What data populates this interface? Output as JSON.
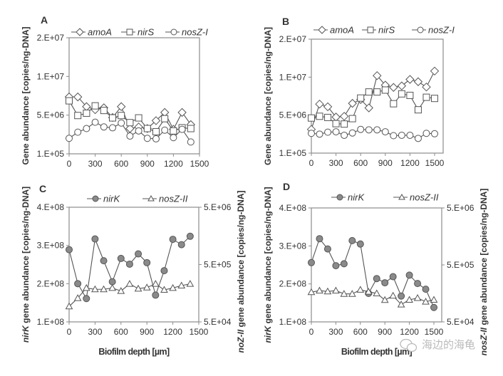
{
  "chart_data": [
    {
      "panel": "A",
      "type": "line",
      "x": [
        0,
        100,
        200,
        300,
        400,
        500,
        600,
        700,
        800,
        900,
        1000,
        1100,
        1200,
        1300,
        1400
      ],
      "x_ticks": [
        0,
        300,
        600,
        900,
        1200,
        1500
      ],
      "xlim": [
        0,
        1500
      ],
      "xlabel": "",
      "ylabel": "Gene abundance [copies/ng-DNA]",
      "y_ticks": [
        100000,
        5000000,
        10000000,
        20000000
      ],
      "y_tick_labels": [
        "1.E+05",
        "5.E+06",
        "1.E+07",
        "2.E+07"
      ],
      "series": [
        {
          "name": "amoA",
          "marker": "diamond",
          "fill": "#ffffff",
          "values": [
            7350000,
            7350000,
            6100000,
            5700000,
            5950000,
            4700000,
            6100000,
            3300000,
            3500000,
            3300000,
            4300000,
            5350000,
            3200000,
            5350000,
            3800000
          ]
        },
        {
          "name": "nirS",
          "marker": "square",
          "fill": "#ffffff",
          "values": [
            6850000,
            4950000,
            5250000,
            6200000,
            5600000,
            4650000,
            4950000,
            4050000,
            4650000,
            3300000,
            2900000,
            4550000,
            3000000,
            3400000,
            3300000
          ]
        },
        {
          "name": "nosZ-I",
          "marker": "circle",
          "fill": "#ffffff",
          "values": [
            2060000,
            2840000,
            3300000,
            4100000,
            3500000,
            3400000,
            4000000,
            2350000,
            3000000,
            2060000,
            2000000,
            3100000,
            2150000,
            3200000,
            1600000
          ]
        }
      ]
    },
    {
      "panel": "B",
      "type": "line",
      "x": [
        0,
        100,
        200,
        300,
        400,
        500,
        600,
        700,
        800,
        900,
        1000,
        1100,
        1200,
        1300,
        1400,
        1500
      ],
      "x_ticks": [
        0,
        300,
        600,
        900,
        1200,
        1500
      ],
      "xlim": [
        0,
        1500
      ],
      "xlabel": "",
      "ylabel": "Gene abundance [copies/ng-DNA]",
      "y_ticks": [
        100000,
        5000000,
        10000000,
        20000000
      ],
      "y_tick_labels": [
        "1.E+05",
        "5.E+06",
        "1.E+07",
        "2.E+07"
      ],
      "series": [
        {
          "name": "amoA",
          "marker": "diamond",
          "fill": "#ffffff",
          "values": [
            3160000,
            6450000,
            6100000,
            4750000,
            4850000,
            6550000,
            7050000,
            5950000,
            10400000,
            8950000,
            8650000,
            8850000,
            9700000,
            9400000,
            8700000,
            11600000
          ]
        },
        {
          "name": "nirS",
          "marker": "square",
          "fill": "#ffffff",
          "values": [
            4630000,
            4850000,
            4700000,
            3900000,
            3850000,
            4550000,
            7250000,
            8050000,
            8050000,
            8300000,
            6500000,
            7800000,
            7600000,
            5700000,
            7350000,
            7200000
          ]
        },
        {
          "name": "nosZ-I",
          "marker": "circle",
          "fill": "#ffffff",
          "values": [
            2650000,
            2550000,
            2800000,
            2850000,
            2400000,
            2700000,
            3160000,
            3100000,
            3100000,
            2850000,
            2350000,
            2400000,
            2400000,
            2000000,
            2650000,
            2600000
          ]
        }
      ]
    },
    {
      "panel": "C",
      "type": "line",
      "x": [
        0,
        100,
        200,
        300,
        400,
        500,
        600,
        700,
        800,
        900,
        1000,
        1100,
        1200,
        1300,
        1400
      ],
      "x_ticks": [
        0,
        300,
        600,
        900,
        1200,
        1500
      ],
      "xlim": [
        0,
        1500
      ],
      "xlabel": "Biofilm depth [µm]",
      "ylabel_gene": "nirK",
      "ylabel_rest": " gene abundance [copies/ng-DNA]",
      "y2label_gene": "noZ-II",
      "y2label_rest": " gene abundance [copies/ng-DNA]",
      "y_ticks": [
        100000000,
        200000000,
        300000000,
        400000000
      ],
      "y_tick_labels": [
        "1.E+08",
        "2.E+08",
        "3.E+08",
        "4.E+08"
      ],
      "y2_ticks": [
        50000,
        500000,
        5000000
      ],
      "y2_scale": "log",
      "y2_tick_labels": [
        "5.E+04",
        "5.E+05",
        "5.E+06"
      ],
      "series": [
        {
          "name": "nirK",
          "marker": "circle",
          "fill": "#8a8a8a",
          "axis": "left",
          "values": [
            289000000,
            200000000,
            161000000,
            317000000,
            260000000,
            205000000,
            266000000,
            251000000,
            278000000,
            255000000,
            170000000,
            234000000,
            316000000,
            302000000,
            324000000
          ]
        },
        {
          "name": "nosZ-II",
          "marker": "triangle",
          "fill": "#ffffff",
          "axis": "right",
          "values": [
            93000,
            130000,
            195000,
            185000,
            185000,
            195000,
            173000,
            230000,
            190000,
            199000,
            230000,
            181000,
            195000,
            215000,
            230000
          ]
        }
      ]
    },
    {
      "panel": "D",
      "type": "line",
      "x": [
        0,
        100,
        200,
        300,
        400,
        500,
        600,
        700,
        800,
        900,
        1000,
        1100,
        1200,
        1300,
        1400,
        1500
      ],
      "x_ticks": [
        0,
        300,
        600,
        900,
        1200,
        1500
      ],
      "xlim": [
        0,
        1500
      ],
      "xlabel": "Biofilm depth [µm]",
      "ylabel_gene": "nirK",
      "ylabel_rest": " gene abundance [copies/ng-DNA]",
      "y2label_gene": "nosZ-II",
      "y2label_rest": " gene abundance [copies/ng-DNA]",
      "y_ticks": [
        100000000,
        200000000,
        300000000,
        400000000
      ],
      "y_tick_labels": [
        "1.E+08",
        "2.E+08",
        "3.E+08",
        "4.E+08"
      ],
      "y2_ticks": [
        50000,
        500000,
        5000000
      ],
      "y2_scale": "log",
      "y2_tick_labels": [
        "5.E+04",
        "5.E+05",
        "5.E+06"
      ],
      "series": [
        {
          "name": "nirK",
          "marker": "circle",
          "fill": "#8a8a8a",
          "axis": "left",
          "values": [
            256000000,
            319000000,
            292000000,
            248000000,
            253000000,
            314000000,
            305000000,
            175000000,
            214000000,
            203000000,
            219000000,
            168000000,
            223000000,
            201000000,
            186000000,
            138000000
          ]
        },
        {
          "name": "nosZ-II",
          "marker": "triangle",
          "fill": "#ffffff",
          "axis": "right",
          "values": [
            166000,
            177000,
            171000,
            177000,
            155000,
            155000,
            183000,
            169000,
            158000,
            121000,
            144000,
            101000,
            122000,
            131000,
            113000,
            122000
          ]
        }
      ]
    }
  ],
  "watermark": {
    "text": "海边的海龟",
    "icon": "wechat-icon"
  }
}
